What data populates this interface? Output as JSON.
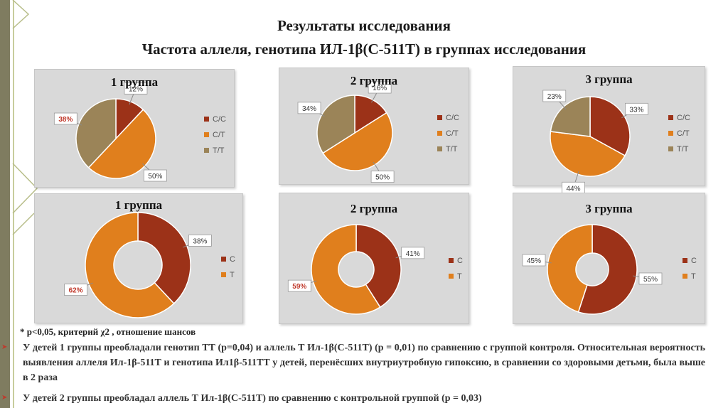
{
  "title_line1": "Результаты исследования",
  "title_line2": "Частота аллеля, генотипа ИЛ-1β(С-511Т) в группах исследования",
  "footnote": "* р<0,05, критерий χ2 , отношение шансов",
  "paragraph1": "У детей 1 группы преобладали генотип ТТ (р=0,04) и аллель Т Ил-1β(С-511Т) (р = 0,01) по сравнению с группой контроля. Относительная вероятность выявления аллеля Ил-1β-511Т и генотипа Ил1β-511ТТ у детей, перенёсших внутриутробную гипоксию, в сравнении со здоровыми детьми, была выше в 2 раза",
  "paragraph2": "У детей 2 группы преобладал аллель Т Ил-1β(С-511Т) по сравнению с контрольной группой (р = 0,03)",
  "colors": {
    "cc": "#9c3218",
    "ct": "#e07f1d",
    "tt": "#9b8458",
    "c": "#9c3218",
    "t": "#e07f1d",
    "panel": "#d9d9d9",
    "highlight_label": "#c0392b"
  },
  "chart_data": [
    {
      "type": "pie",
      "title": "1 группа",
      "categories": [
        "С/С",
        "С/Т",
        "Т/Т"
      ],
      "values": [
        12,
        50,
        38
      ],
      "labels": [
        "12%",
        "50%",
        "38%"
      ],
      "highlighted": [
        false,
        false,
        true
      ],
      "legend": "right"
    },
    {
      "type": "pie",
      "title": "2 группа",
      "categories": [
        "С/С",
        "С/Т",
        "Т/Т"
      ],
      "values": [
        16,
        50,
        34
      ],
      "labels": [
        "16%",
        "50%",
        "34%"
      ],
      "highlighted": [
        false,
        false,
        false
      ],
      "legend": "right"
    },
    {
      "type": "pie",
      "title": "3 группа",
      "categories": [
        "С/С",
        "С/Т",
        "Т/Т"
      ],
      "values": [
        33,
        44,
        23
      ],
      "labels": [
        "33%",
        "44%",
        "23%"
      ],
      "highlighted": [
        false,
        false,
        false
      ],
      "legend": "right"
    },
    {
      "type": "donut",
      "title": "1 группа",
      "categories": [
        "С",
        "Т"
      ],
      "values": [
        38,
        62
      ],
      "labels": [
        "38%",
        "62%"
      ],
      "highlighted": [
        false,
        true
      ],
      "legend": "right"
    },
    {
      "type": "donut",
      "title": "2 группа",
      "categories": [
        "С",
        "Т"
      ],
      "values": [
        41,
        59
      ],
      "labels": [
        "41%",
        "59%"
      ],
      "highlighted": [
        false,
        true
      ],
      "legend": "right"
    },
    {
      "type": "donut",
      "title": "3 группа",
      "categories": [
        "С",
        "Т"
      ],
      "values": [
        55,
        45
      ],
      "labels": [
        "55%",
        "45%"
      ],
      "highlighted": [
        false,
        false
      ],
      "legend": "right"
    }
  ]
}
